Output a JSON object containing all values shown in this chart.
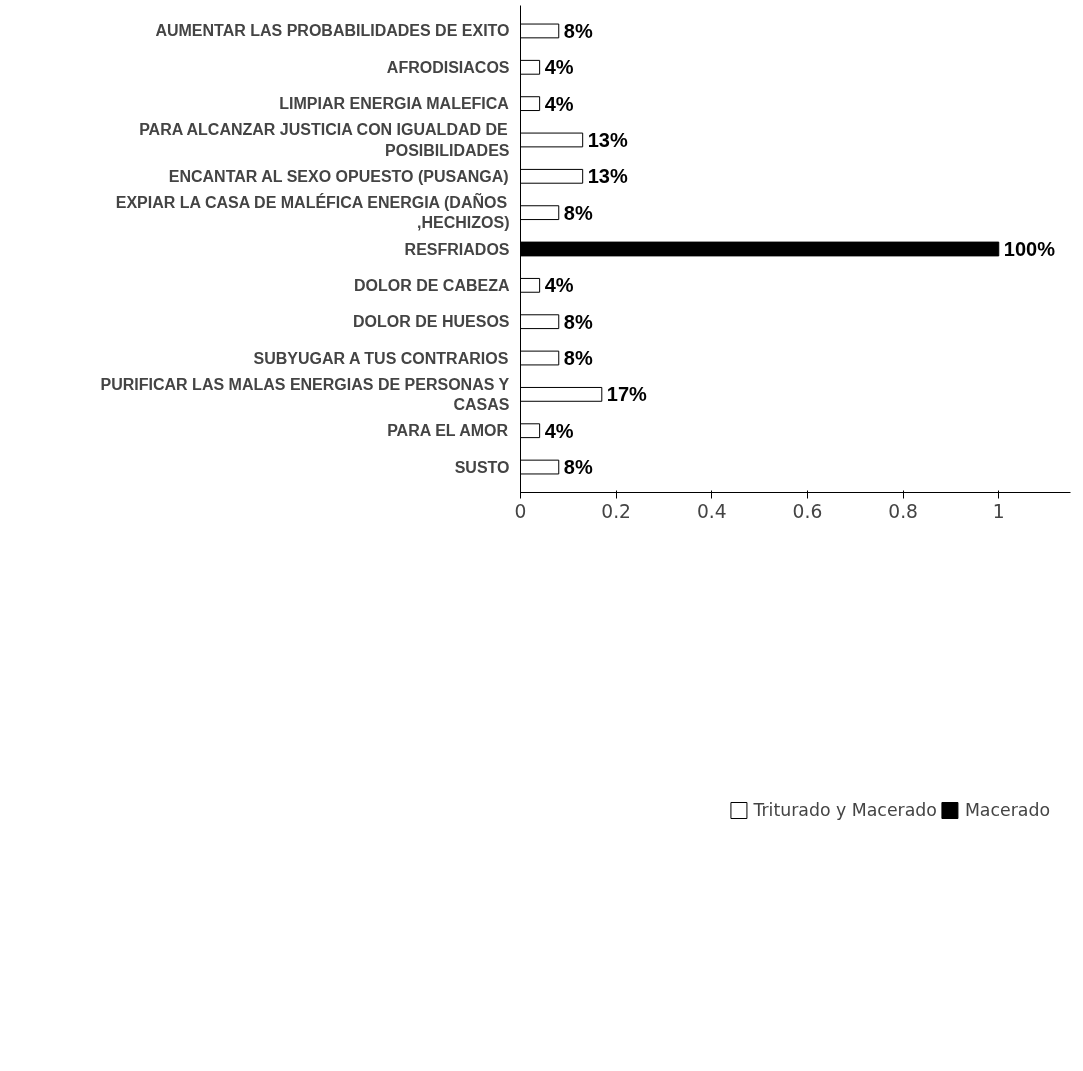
{
  "chart_data": {
    "type": "bar",
    "orientation": "horizontal",
    "categories": [
      "AUMENTAR LAS PROBABILIDADES DE EXITO",
      "AFRODISIACOS",
      "LIMPIAR ENERGIA MALEFICA",
      "PARA ALCANZAR JUSTICIA CON IGUALDAD DE POSIBILIDADES",
      "ENCANTAR AL SEXO OPUESTO (PUSANGA)",
      "EXPIAR LA CASA DE MALÉFICA ENERGIA (DAÑOS ,HECHIZOS)",
      "RESFRIADOS",
      "DOLOR DE CABEZA",
      "DOLOR DE HUESOS",
      "SUBYUGAR A TUS CONTRARIOS",
      "PURIFICAR LAS MALAS ENERGIAS DE PERSONAS Y CASAS",
      "PARA EL AMOR",
      "SUSTO"
    ],
    "series": [
      {
        "name": "Triturado y Macerado",
        "color": "#ffffff",
        "values": [
          0.08,
          0.04,
          0.04,
          0.13,
          0.13,
          0.08,
          null,
          0.04,
          0.08,
          0.08,
          0.17,
          0.04,
          0.08
        ],
        "value_labels": [
          "8%",
          "4%",
          "4%",
          "13%",
          "13%",
          "8%",
          null,
          "4%",
          "8%",
          "8%",
          "17%",
          "4%",
          "8%"
        ]
      },
      {
        "name": "Macerado",
        "color": "#000000",
        "values": [
          null,
          null,
          null,
          null,
          null,
          null,
          1.0,
          null,
          null,
          null,
          null,
          null,
          null
        ],
        "value_labels": [
          null,
          null,
          null,
          null,
          null,
          null,
          "100%",
          null,
          null,
          null,
          null,
          null,
          null
        ]
      }
    ],
    "xlim": [
      0,
      1.15
    ],
    "xticks": [
      0,
      0.2,
      0.4,
      0.6,
      0.8,
      1
    ],
    "grid": false,
    "legend": "bottom"
  }
}
